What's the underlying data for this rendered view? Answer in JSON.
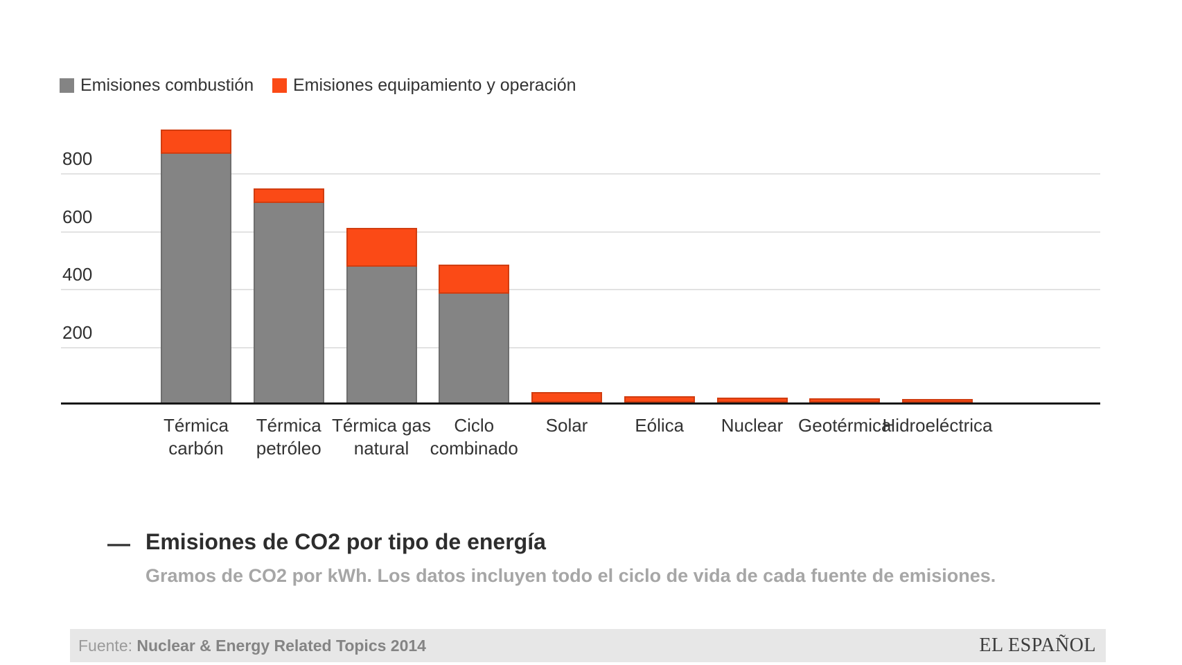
{
  "legend": {
    "items": [
      {
        "label": "Emisiones combustión",
        "color": "#848484"
      },
      {
        "label": "Emisiones equipamiento y operación",
        "color": "#fb4a16"
      }
    ]
  },
  "chart_data": {
    "type": "bar",
    "stacked": true,
    "title": "Emisiones de CO2 por tipo de energía",
    "subtitle": "Gramos de CO2 por kWh. Los datos incluyen todo el ciclo de vida de cada fuente de emisiones.",
    "ylabel": "",
    "xlabel": "",
    "unit": "g CO2/kWh",
    "categories": [
      "Térmica carbón",
      "Térmica petróleo",
      "Térmica gas natural",
      "Ciclo combinado",
      "Solar",
      "Eólica",
      "Nuclear",
      "Geotérmica",
      "Hidroeléctrica"
    ],
    "category_label_lines": [
      [
        "Térmica",
        "carbón"
      ],
      [
        "Térmica",
        "petróleo"
      ],
      [
        "Térmica gas",
        "natural"
      ],
      [
        "Ciclo",
        "combinado"
      ],
      [
        "Solar"
      ],
      [
        "Eólica"
      ],
      [
        "Nuclear"
      ],
      [
        "Geotérmica"
      ],
      [
        "Hidroeléctrica"
      ]
    ],
    "series": [
      {
        "name": "Emisiones combustión",
        "color": "#848484",
        "stroke": "#6e6e6e",
        "values": [
          860,
          690,
          470,
          375,
          0,
          0,
          0,
          0,
          0
        ]
      },
      {
        "name": "Emisiones equipamiento y operación",
        "color": "#fb4a16",
        "stroke": "#d13d10",
        "values": [
          85,
          50,
          135,
          100,
          35,
          22,
          17,
          14,
          11
        ]
      }
    ],
    "totals": [
      945,
      740,
      605,
      475,
      35,
      22,
      17,
      14,
      11
    ],
    "yticks": [
      200,
      400,
      600,
      800
    ],
    "ylim": [
      0,
      1015
    ],
    "grid": "horizontal",
    "legend_position": "top-left",
    "axis_color": "#161616",
    "gridline_color": "#e2e2e2"
  },
  "caption": {
    "dash": "—"
  },
  "footer": {
    "source_prefix": "Fuente:",
    "source_name": "Nuclear & Energy Related Topics 2014",
    "brand": "EL ESPAÑOL"
  }
}
